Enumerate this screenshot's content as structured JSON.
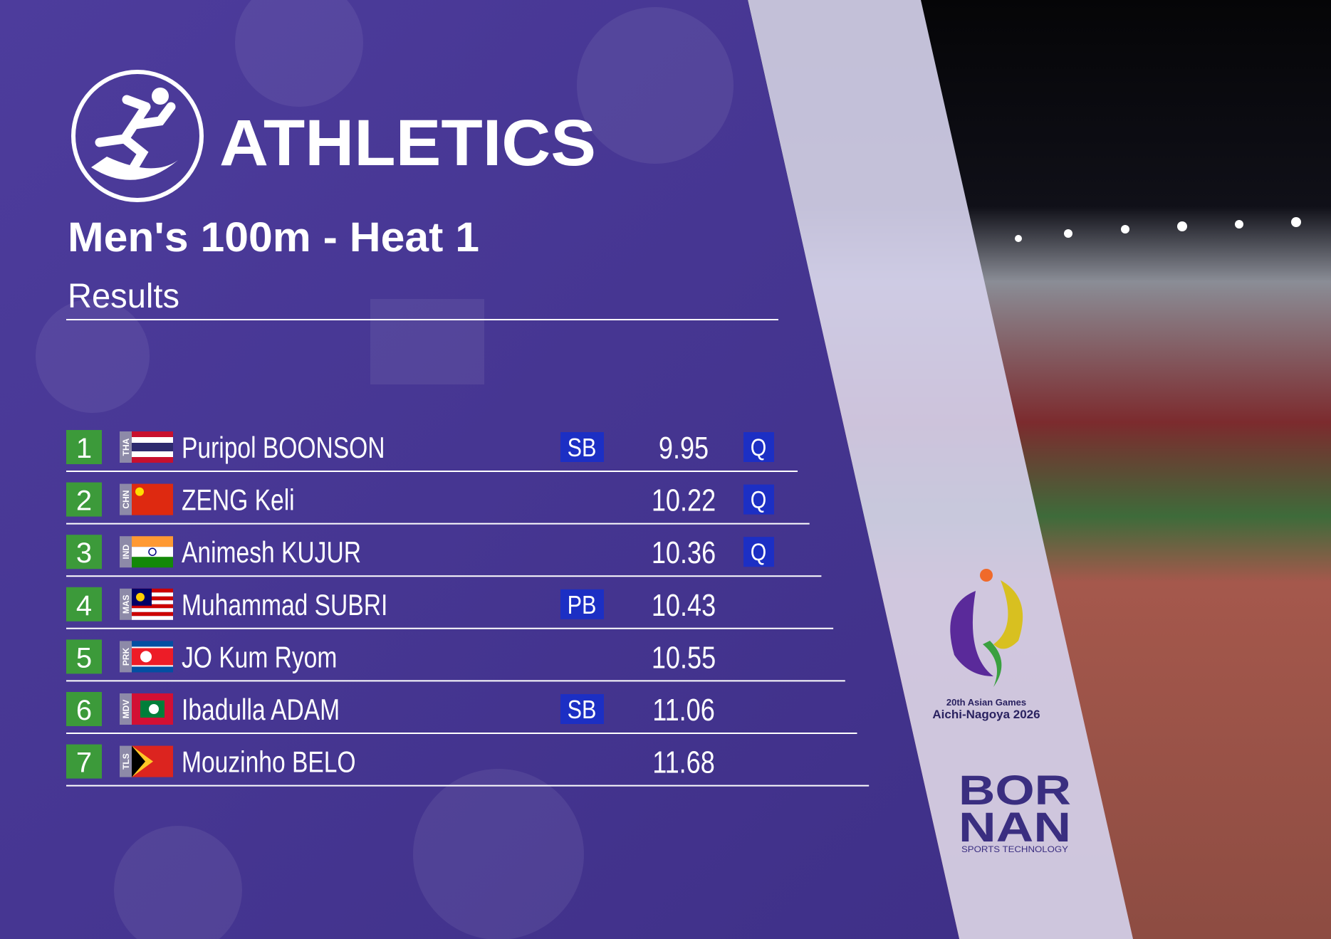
{
  "header": {
    "sport": "ATHLETICS",
    "event": "Men's 100m - Heat 1",
    "subtitle": "Results"
  },
  "results": {
    "rows": [
      {
        "rank": 1,
        "country": "THA",
        "name": "Puripol BOONSON",
        "record": "SB",
        "time": 9.95,
        "qualification": "Q"
      },
      {
        "rank": 2,
        "country": "CHN",
        "name": "ZENG Keli",
        "time": 10.22,
        "qualification": "Q"
      },
      {
        "rank": 3,
        "country": "IND",
        "name": "Animesh KUJUR",
        "time": 10.36,
        "qualification": "Q"
      },
      {
        "rank": 4,
        "country": "MAS",
        "name": "Muhammad SUBRI",
        "record": "PB",
        "time": 10.43
      },
      {
        "rank": 5,
        "country": "PRK",
        "name": "JO Kum Ryom",
        "time": 10.55
      },
      {
        "rank": 6,
        "country": "MDV",
        "name": "Ibadulla ADAM",
        "record": "SB",
        "time": 11.06
      },
      {
        "rank": 7,
        "country": "TLS",
        "name": "Mouzinho BELO",
        "time": 11.68
      }
    ]
  },
  "logos": {
    "games": "20th Asian Games",
    "host": "Aichi-Nagoya 2026",
    "sponsor_top": "BOR",
    "sponsor_bottom": "NAN",
    "sponsor_tagline": "SPORTS TECHNOLOGY"
  }
}
